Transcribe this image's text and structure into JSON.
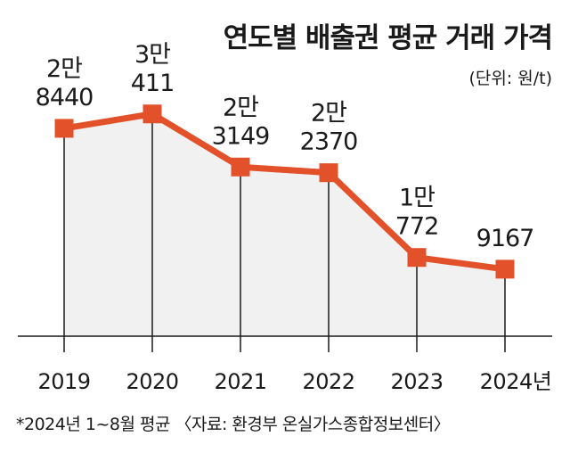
{
  "chart_data": {
    "type": "area",
    "title": "연도별 배출권 평균 거래 가격",
    "unit_label": "(단위: 원/t)",
    "categories": [
      "2019",
      "2020",
      "2021",
      "2022",
      "2023",
      "2024년"
    ],
    "values": [
      28440,
      30411,
      23149,
      22370,
      10772,
      9167
    ],
    "value_labels": [
      [
        "2만",
        "8440"
      ],
      [
        "3만",
        "411"
      ],
      [
        "2만",
        "3149"
      ],
      [
        "2만",
        "2370"
      ],
      [
        "1만",
        "772"
      ],
      [
        "",
        "9167"
      ]
    ],
    "ylim": [
      0,
      46000
    ],
    "xlabel": "",
    "ylabel": "",
    "footnote": "*2024년 1~8월 평균 〈자료: 환경부 온실가스종합정보센터〉",
    "colors": {
      "line": "#e2512a",
      "marker": "#e2512a",
      "fill": "#f1f1f1",
      "guide": "#1a1a1a",
      "text": "#1a1a1a"
    }
  }
}
